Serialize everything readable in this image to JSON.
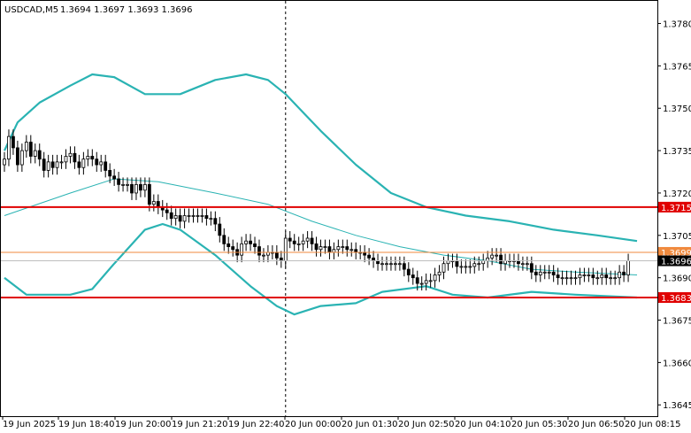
{
  "header": {
    "symbol_label": "USDCAD,M5",
    "ohlc_label": "1.3694 1.3697 1.3693 1.3696"
  },
  "chart_data": {
    "type": "candlestick",
    "symbol": "USDCAD",
    "timeframe": "M5",
    "ylim": [
      1.3641,
      1.3788
    ],
    "y_ticks": [
      "1.3780",
      "1.3765",
      "1.3750",
      "1.3735",
      "1.3720",
      "1.3705",
      "1.3690",
      "1.3675",
      "1.3660",
      "1.3645"
    ],
    "x_ticks": [
      "19 Jun 2025",
      "19 Jun 18:40",
      "19 Jun 20:00",
      "19 Jun 21:20",
      "19 Jun 22:40",
      "20 Jun 00:00",
      "20 Jun 01:30",
      "20 Jun 02:50",
      "20 Jun 04:10",
      "20 Jun 05:30",
      "20 Jun 06:50",
      "20 Jun 08:15"
    ],
    "x_range_bars": [
      0,
      144
    ],
    "session_separator_bar": 64,
    "candle_bar_up_color": "#000000",
    "candle_bar_down_color": "#000000",
    "candle_up_fill": "#ffffff",
    "candle_down_fill": "#000000",
    "candle_closes": [
      1.3732,
      1.374,
      1.3736,
      1.373,
      1.3735,
      1.3738,
      1.3733,
      1.3735,
      1.3732,
      1.3728,
      1.3731,
      1.3729,
      1.3731,
      1.3731,
      1.3733,
      1.3734,
      1.3731,
      1.3729,
      1.3732,
      1.3733,
      1.3732,
      1.373,
      1.3731,
      1.3728,
      1.3726,
      1.3725,
      1.3723,
      1.3723,
      1.3723,
      1.372,
      1.3723,
      1.3721,
      1.3723,
      1.3716,
      1.3717,
      1.3715,
      1.3714,
      1.3713,
      1.3711,
      1.3712,
      1.371,
      1.3712,
      1.3712,
      1.3712,
      1.3712,
      1.3712,
      1.3711,
      1.3711,
      1.3709,
      1.3705,
      1.3702,
      1.3701,
      1.37,
      1.3698,
      1.3702,
      1.3703,
      1.3702,
      1.3701,
      1.3698,
      1.3698,
      1.3699,
      1.3699,
      1.3697,
      1.3696,
      1.3704,
      1.3703,
      1.3702,
      1.3702,
      1.3703,
      1.3704,
      1.3702,
      1.37,
      1.3701,
      1.3701,
      1.3699,
      1.37,
      1.3701,
      1.3701,
      1.37,
      1.37,
      1.3699,
      1.3699,
      1.3698,
      1.3697,
      1.3696,
      1.3695,
      1.3695,
      1.3695,
      1.3695,
      1.3695,
      1.3695,
      1.3693,
      1.3691,
      1.369,
      1.3688,
      1.3688,
      1.3689,
      1.3689,
      1.3691,
      1.3692,
      1.3695,
      1.3696,
      1.3696,
      1.3694,
      1.3694,
      1.3694,
      1.3694,
      1.3695,
      1.3695,
      1.3696,
      1.3697,
      1.3698,
      1.3698,
      1.3695,
      1.3696,
      1.3696,
      1.3696,
      1.3695,
      1.3695,
      1.3695,
      1.3692,
      1.3691,
      1.3692,
      1.3692,
      1.3692,
      1.3691,
      1.369,
      1.369,
      1.369,
      1.369,
      1.369,
      1.3691,
      1.3691,
      1.3691,
      1.369,
      1.369,
      1.3691,
      1.369,
      1.369,
      1.369,
      1.3692,
      1.3691,
      1.3696
    ],
    "bollinger": {
      "color": "#2ab3b3",
      "upper": [
        [
          0,
          1.3735
        ],
        [
          3,
          1.3745
        ],
        [
          8,
          1.3752
        ],
        [
          15,
          1.3758
        ],
        [
          20,
          1.3762
        ],
        [
          25,
          1.3761
        ],
        [
          32,
          1.3755
        ],
        [
          40,
          1.3755
        ],
        [
          48,
          1.376
        ],
        [
          55,
          1.3762
        ],
        [
          60,
          1.376
        ],
        [
          64,
          1.3755
        ],
        [
          72,
          1.3742
        ],
        [
          80,
          1.373
        ],
        [
          88,
          1.372
        ],
        [
          96,
          1.3715
        ],
        [
          105,
          1.3712
        ],
        [
          115,
          1.371
        ],
        [
          125,
          1.3707
        ],
        [
          135,
          1.3705
        ],
        [
          144,
          1.3703
        ]
      ],
      "middle": [
        [
          0,
          1.3712
        ],
        [
          15,
          1.372
        ],
        [
          25,
          1.3725
        ],
        [
          35,
          1.3724
        ],
        [
          48,
          1.372
        ],
        [
          60,
          1.3716
        ],
        [
          70,
          1.371
        ],
        [
          80,
          1.3705
        ],
        [
          90,
          1.3701
        ],
        [
          100,
          1.3698
        ],
        [
          110,
          1.3696
        ],
        [
          120,
          1.3693
        ],
        [
          130,
          1.3692
        ],
        [
          144,
          1.3691
        ]
      ],
      "lower": [
        [
          0,
          1.369
        ],
        [
          5,
          1.3684
        ],
        [
          15,
          1.3684
        ],
        [
          20,
          1.3686
        ],
        [
          25,
          1.3695
        ],
        [
          32,
          1.3707
        ],
        [
          36,
          1.3709
        ],
        [
          40,
          1.3707
        ],
        [
          48,
          1.3698
        ],
        [
          56,
          1.3687
        ],
        [
          62,
          1.368
        ],
        [
          66,
          1.3677
        ],
        [
          72,
          1.368
        ],
        [
          80,
          1.3681
        ],
        [
          86,
          1.3685
        ],
        [
          96,
          1.3687
        ],
        [
          102,
          1.3684
        ],
        [
          110,
          1.3683
        ],
        [
          120,
          1.3685
        ],
        [
          130,
          1.3684
        ],
        [
          144,
          1.3683
        ]
      ]
    },
    "levels": [
      {
        "label": "1.3715",
        "value": 1.3715,
        "color": "#e00000",
        "label_bg": "#e00000",
        "label_color": "#ffffff"
      },
      {
        "label": "1.3683",
        "value": 1.3683,
        "color": "#e00000",
        "label_bg": "#e00000",
        "label_color": "#ffffff"
      },
      {
        "label": "1.3699",
        "value": 1.3699,
        "color": "#f08a3e",
        "label_bg": "#f08a3e",
        "label_color": "#ffffff"
      },
      {
        "label": "1.3696",
        "value": 1.3696,
        "color": "#bfbfbf",
        "label_bg": "#000000",
        "label_color": "#ffffff"
      }
    ]
  }
}
